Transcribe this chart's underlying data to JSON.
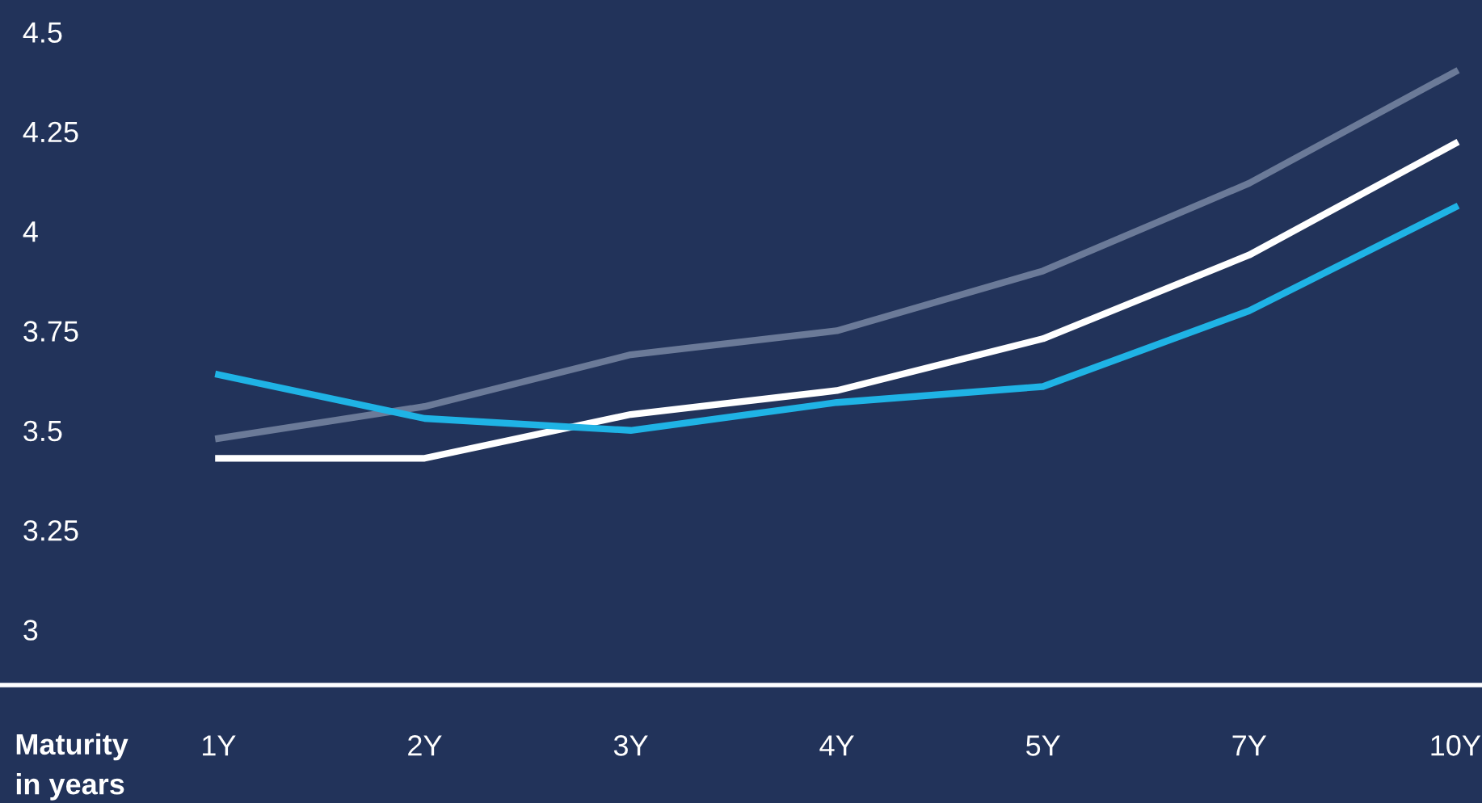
{
  "chart_data": {
    "type": "line",
    "xlabel": "Maturity in years",
    "categories": [
      "1Y",
      "2Y",
      "3Y",
      "4Y",
      "5Y",
      "7Y",
      "10Y"
    ],
    "series": [
      {
        "color": "#6b7a98",
        "values": [
          3.48,
          3.56,
          3.69,
          3.75,
          3.9,
          4.12,
          4.4
        ]
      },
      {
        "color": "#ffffff",
        "values": [
          3.43,
          3.43,
          3.54,
          3.6,
          3.73,
          3.94,
          4.22
        ]
      },
      {
        "color": "#1fb3e5",
        "values": [
          3.64,
          3.53,
          3.5,
          3.57,
          3.61,
          3.8,
          4.06
        ]
      }
    ],
    "ylim": [
      2.565,
      4.58
    ],
    "yticks": [
      3,
      3.25,
      3.5,
      3.75,
      4,
      4.25,
      4.5
    ],
    "grid": false,
    "marker": "none",
    "line_style": "solid"
  }
}
